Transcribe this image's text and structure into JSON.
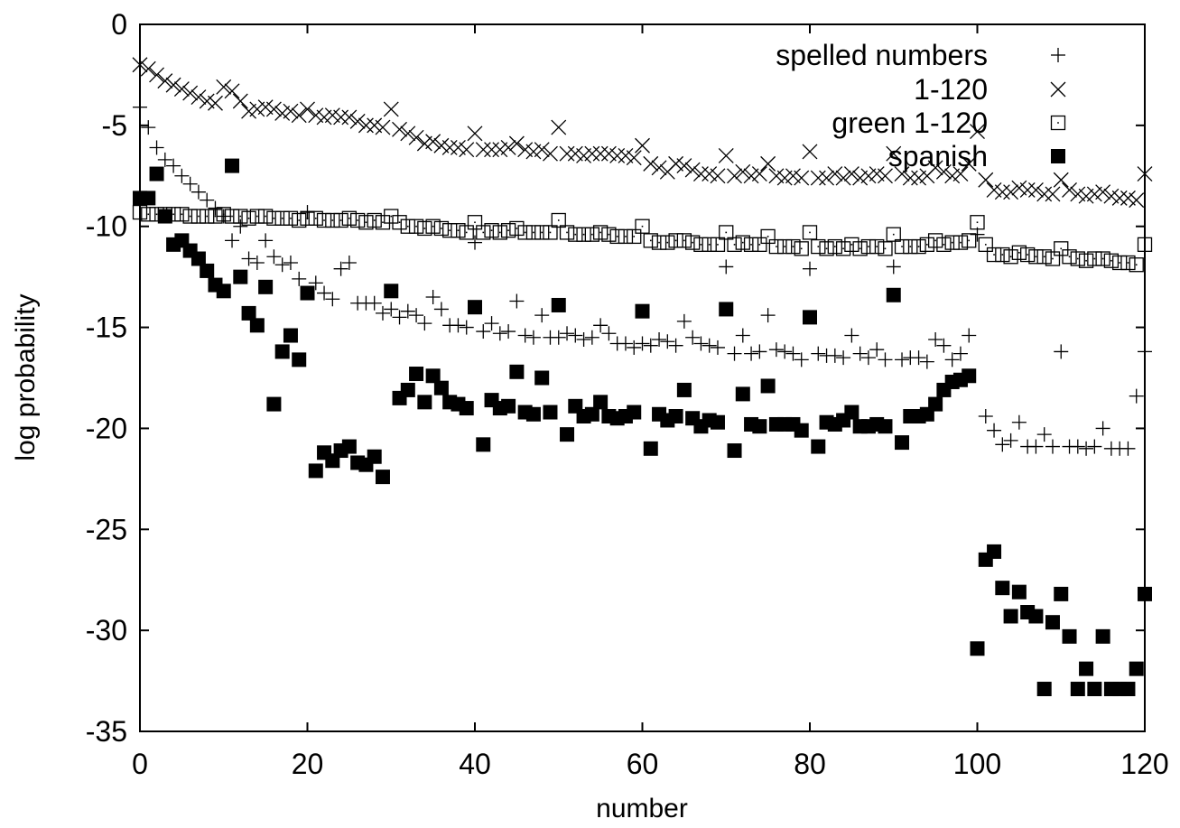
{
  "chart_data": {
    "type": "scatter",
    "xlabel": "number",
    "ylabel": "log probability",
    "xlim": [
      0,
      120
    ],
    "ylim": [
      -35,
      0
    ],
    "xticks": [
      0,
      20,
      40,
      60,
      80,
      100,
      120
    ],
    "yticks": [
      0,
      -5,
      -10,
      -15,
      -20,
      -25,
      -30,
      -35
    ],
    "grid": false,
    "legend_position": "top-right",
    "series": [
      {
        "name": "spelled numbers",
        "marker": "plus",
        "x": [
          0,
          1,
          2,
          3,
          4,
          5,
          6,
          7,
          8,
          9,
          10,
          11,
          12,
          13,
          14,
          15,
          16,
          17,
          18,
          19,
          20,
          21,
          22,
          23,
          24,
          25,
          26,
          27,
          28,
          29,
          30,
          31,
          32,
          33,
          34,
          35,
          36,
          37,
          38,
          39,
          40,
          41,
          42,
          43,
          44,
          45,
          46,
          47,
          48,
          49,
          50,
          51,
          52,
          53,
          54,
          55,
          56,
          57,
          58,
          59,
          60,
          61,
          62,
          63,
          64,
          65,
          66,
          67,
          68,
          69,
          70,
          71,
          72,
          73,
          74,
          75,
          76,
          77,
          78,
          79,
          80,
          81,
          82,
          83,
          84,
          85,
          86,
          87,
          88,
          89,
          90,
          91,
          92,
          93,
          94,
          95,
          96,
          97,
          98,
          99,
          100,
          101,
          102,
          103,
          104,
          105,
          106,
          107,
          108,
          109,
          110,
          111,
          112,
          113,
          114,
          115,
          116,
          117,
          118,
          119,
          120
        ],
        "y": [
          -4.1,
          -5.1,
          -6.1,
          -6.7,
          -7.0,
          -7.5,
          -7.9,
          -8.3,
          -8.7,
          -9.1,
          -9.5,
          -10.7,
          -10.0,
          -11.6,
          -11.8,
          -10.7,
          -11.5,
          -11.9,
          -11.8,
          -12.6,
          -9.3,
          -12.8,
          -13.3,
          -13.6,
          -12.1,
          -11.8,
          -13.8,
          -13.8,
          -13.8,
          -14.3,
          -14.1,
          -14.5,
          -14.2,
          -14.4,
          -14.8,
          -13.5,
          -14.1,
          -14.9,
          -14.9,
          -15.0,
          -10.8,
          -15.2,
          -14.8,
          -15.3,
          -15.2,
          -13.7,
          -15.4,
          -15.5,
          -14.4,
          -15.5,
          -15.5,
          -15.3,
          -15.4,
          -15.6,
          -15.5,
          -14.9,
          -15.3,
          -15.8,
          -15.8,
          -16.0,
          -15.8,
          -15.9,
          -15.6,
          -15.7,
          -15.9,
          -14.7,
          -15.5,
          -15.8,
          -15.9,
          -16.0,
          -12.0,
          -16.3,
          -15.4,
          -16.3,
          -16.2,
          -14.4,
          -16.1,
          -16.2,
          -16.3,
          -16.6,
          -12.1,
          -16.3,
          -16.4,
          -16.4,
          -16.5,
          -15.4,
          -16.3,
          -16.5,
          -16.1,
          -16.6,
          -12.0,
          -16.6,
          -16.5,
          -16.5,
          -16.7,
          -15.6,
          -15.9,
          -16.6,
          -16.3,
          -15.4,
          -10.4,
          -19.4,
          -20.1,
          -20.8,
          -20.6,
          -19.7,
          -20.9,
          -20.9,
          -20.3,
          -20.9,
          -16.2,
          -20.9,
          -20.9,
          -21.0,
          -20.9,
          -20.0,
          -21.0,
          -21.0,
          -21.0,
          -18.4,
          -16.2
        ]
      },
      {
        "name": "1-120",
        "marker": "cross",
        "x": [
          0,
          1,
          2,
          3,
          4,
          5,
          6,
          7,
          8,
          9,
          10,
          11,
          12,
          13,
          14,
          15,
          16,
          17,
          18,
          19,
          20,
          21,
          22,
          23,
          24,
          25,
          26,
          27,
          28,
          29,
          30,
          31,
          32,
          33,
          34,
          35,
          36,
          37,
          38,
          39,
          40,
          41,
          42,
          43,
          44,
          45,
          46,
          47,
          48,
          49,
          50,
          51,
          52,
          53,
          54,
          55,
          56,
          57,
          58,
          59,
          60,
          61,
          62,
          63,
          64,
          65,
          66,
          67,
          68,
          69,
          70,
          71,
          72,
          73,
          74,
          75,
          76,
          77,
          78,
          79,
          80,
          81,
          82,
          83,
          84,
          85,
          86,
          87,
          88,
          89,
          90,
          91,
          92,
          93,
          94,
          95,
          96,
          97,
          98,
          99,
          100,
          101,
          102,
          103,
          104,
          105,
          106,
          107,
          108,
          109,
          110,
          111,
          112,
          113,
          114,
          115,
          116,
          117,
          118,
          119,
          120
        ],
        "y": [
          -2.0,
          -2.2,
          -2.5,
          -2.8,
          -3.0,
          -3.2,
          -3.4,
          -3.6,
          -3.8,
          -3.9,
          -3.1,
          -3.3,
          -3.8,
          -4.3,
          -4.2,
          -4.1,
          -4.2,
          -4.4,
          -4.3,
          -4.5,
          -4.2,
          -4.5,
          -4.6,
          -4.5,
          -4.6,
          -4.6,
          -4.8,
          -5.0,
          -5.0,
          -5.1,
          -4.2,
          -5.2,
          -5.4,
          -5.6,
          -5.9,
          -5.8,
          -6.0,
          -6.1,
          -6.1,
          -6.2,
          -5.4,
          -6.2,
          -6.2,
          -6.2,
          -6.1,
          -5.9,
          -6.2,
          -6.3,
          -6.2,
          -6.4,
          -5.1,
          -6.4,
          -6.4,
          -6.5,
          -6.4,
          -6.4,
          -6.4,
          -6.5,
          -6.5,
          -6.6,
          -6.0,
          -6.9,
          -7.1,
          -7.3,
          -6.9,
          -7.0,
          -7.2,
          -7.4,
          -7.4,
          -7.5,
          -6.5,
          -7.5,
          -7.3,
          -7.5,
          -7.4,
          -6.9,
          -7.5,
          -7.6,
          -7.5,
          -7.6,
          -6.3,
          -7.6,
          -7.6,
          -7.4,
          -7.6,
          -7.4,
          -7.6,
          -7.5,
          -7.4,
          -7.5,
          -6.4,
          -7.4,
          -7.6,
          -7.6,
          -7.5,
          -7.1,
          -7.3,
          -7.5,
          -7.4,
          -6.9,
          -5.3,
          -7.7,
          -8.2,
          -8.3,
          -8.3,
          -8.1,
          -8.2,
          -8.2,
          -8.4,
          -8.4,
          -7.7,
          -8.2,
          -8.4,
          -8.5,
          -8.4,
          -8.3,
          -8.5,
          -8.6,
          -8.6,
          -8.7,
          -7.4
        ]
      },
      {
        "name": "green 1-120",
        "marker": "square-dot",
        "x": [
          0,
          1,
          2,
          3,
          4,
          5,
          6,
          7,
          8,
          9,
          10,
          11,
          12,
          13,
          14,
          15,
          16,
          17,
          18,
          19,
          20,
          21,
          22,
          23,
          24,
          25,
          26,
          27,
          28,
          29,
          30,
          31,
          32,
          33,
          34,
          35,
          36,
          37,
          38,
          39,
          40,
          41,
          42,
          43,
          44,
          45,
          46,
          47,
          48,
          49,
          50,
          51,
          52,
          53,
          54,
          55,
          56,
          57,
          58,
          59,
          60,
          61,
          62,
          63,
          64,
          65,
          66,
          67,
          68,
          69,
          70,
          71,
          72,
          73,
          74,
          75,
          76,
          77,
          78,
          79,
          80,
          81,
          82,
          83,
          84,
          85,
          86,
          87,
          88,
          89,
          90,
          91,
          92,
          93,
          94,
          95,
          96,
          97,
          98,
          99,
          100,
          101,
          102,
          103,
          104,
          105,
          106,
          107,
          108,
          109,
          110,
          111,
          112,
          113,
          114,
          115,
          116,
          117,
          118,
          119,
          120
        ],
        "y": [
          -9.3,
          -9.4,
          -9.4,
          -9.4,
          -9.4,
          -9.4,
          -9.5,
          -9.5,
          -9.5,
          -9.5,
          -9.4,
          -9.5,
          -9.5,
          -9.6,
          -9.5,
          -9.5,
          -9.6,
          -9.6,
          -9.6,
          -9.7,
          -9.6,
          -9.6,
          -9.7,
          -9.7,
          -9.7,
          -9.6,
          -9.7,
          -9.8,
          -9.7,
          -9.8,
          -9.5,
          -9.8,
          -10.0,
          -10.0,
          -10.1,
          -10.0,
          -10.1,
          -10.2,
          -10.2,
          -10.3,
          -9.8,
          -10.3,
          -10.2,
          -10.3,
          -10.2,
          -10.1,
          -10.3,
          -10.3,
          -10.3,
          -10.3,
          -9.7,
          -10.3,
          -10.4,
          -10.4,
          -10.4,
          -10.3,
          -10.4,
          -10.5,
          -10.5,
          -10.5,
          -10.0,
          -10.7,
          -10.8,
          -10.8,
          -10.7,
          -10.7,
          -10.8,
          -10.9,
          -10.9,
          -10.9,
          -10.3,
          -10.9,
          -10.8,
          -10.9,
          -10.9,
          -10.5,
          -11.0,
          -11.0,
          -11.0,
          -11.1,
          -10.3,
          -11.0,
          -11.1,
          -11.0,
          -11.1,
          -10.9,
          -11.1,
          -11.0,
          -11.0,
          -11.1,
          -10.4,
          -11.0,
          -11.0,
          -11.0,
          -10.9,
          -10.7,
          -10.9,
          -10.8,
          -10.8,
          -10.7,
          -9.8,
          -10.9,
          -11.4,
          -11.4,
          -11.5,
          -11.3,
          -11.4,
          -11.5,
          -11.5,
          -11.6,
          -11.1,
          -11.5,
          -11.6,
          -11.7,
          -11.6,
          -11.6,
          -11.7,
          -11.8,
          -11.8,
          -11.9,
          -10.9
        ]
      },
      {
        "name": "spanish",
        "marker": "filled-square",
        "x": [
          0,
          1,
          2,
          3,
          4,
          5,
          6,
          7,
          8,
          9,
          10,
          11,
          12,
          13,
          14,
          15,
          16,
          17,
          18,
          19,
          20,
          21,
          22,
          23,
          24,
          25,
          26,
          27,
          28,
          29,
          30,
          31,
          32,
          33,
          34,
          35,
          36,
          37,
          38,
          39,
          40,
          41,
          42,
          43,
          44,
          45,
          46,
          47,
          48,
          49,
          50,
          51,
          52,
          53,
          54,
          55,
          56,
          57,
          58,
          59,
          60,
          61,
          62,
          63,
          64,
          65,
          66,
          67,
          68,
          69,
          70,
          71,
          72,
          73,
          74,
          75,
          76,
          77,
          78,
          79,
          80,
          81,
          82,
          83,
          84,
          85,
          86,
          87,
          88,
          89,
          90,
          91,
          92,
          93,
          94,
          95,
          96,
          97,
          98,
          99,
          100,
          101,
          102,
          103,
          104,
          105,
          106,
          107,
          108,
          109,
          110,
          111,
          112,
          113,
          114,
          115,
          116,
          117,
          118,
          119,
          120
        ],
        "y": [
          -8.6,
          -8.6,
          -7.4,
          -9.5,
          -10.9,
          -10.7,
          -11.2,
          -11.6,
          -12.2,
          -12.9,
          -13.2,
          -7.0,
          -12.5,
          -14.3,
          -14.9,
          -13.0,
          -18.8,
          -16.2,
          -15.4,
          -16.6,
          -13.3,
          -22.1,
          -21.2,
          -21.6,
          -21.1,
          -20.9,
          -21.7,
          -21.8,
          -21.4,
          -22.4,
          -13.2,
          -18.5,
          -18.1,
          -17.3,
          -18.7,
          -17.4,
          -18.0,
          -18.7,
          -18.8,
          -19.0,
          -14.0,
          -20.8,
          -18.6,
          -19.0,
          -18.9,
          -17.2,
          -19.2,
          -19.3,
          -17.5,
          -19.2,
          -13.9,
          -20.3,
          -18.9,
          -19.4,
          -19.3,
          -18.7,
          -19.4,
          -19.5,
          -19.4,
          -19.2,
          -14.2,
          -21.0,
          -19.3,
          -19.6,
          -19.4,
          -18.1,
          -19.5,
          -19.9,
          -19.6,
          -19.7,
          -14.1,
          -21.1,
          -18.3,
          -19.8,
          -19.9,
          -17.9,
          -19.8,
          -19.8,
          -19.8,
          -20.1,
          -14.5,
          -20.9,
          -19.7,
          -19.8,
          -19.6,
          -19.2,
          -19.9,
          -19.9,
          -19.8,
          -19.9,
          -13.4,
          -20.7,
          -19.4,
          -19.4,
          -19.3,
          -18.8,
          -18.1,
          -17.7,
          -17.6,
          -17.4,
          -30.9,
          -26.5,
          -26.1,
          -27.9,
          -29.3,
          -28.1,
          -29.1,
          -29.3,
          -32.9,
          -29.6,
          -28.2,
          -30.3,
          -32.9,
          -31.9,
          -32.9,
          -30.3,
          -32.9,
          -32.9,
          -32.9,
          -31.9,
          -28.2
        ]
      }
    ]
  }
}
